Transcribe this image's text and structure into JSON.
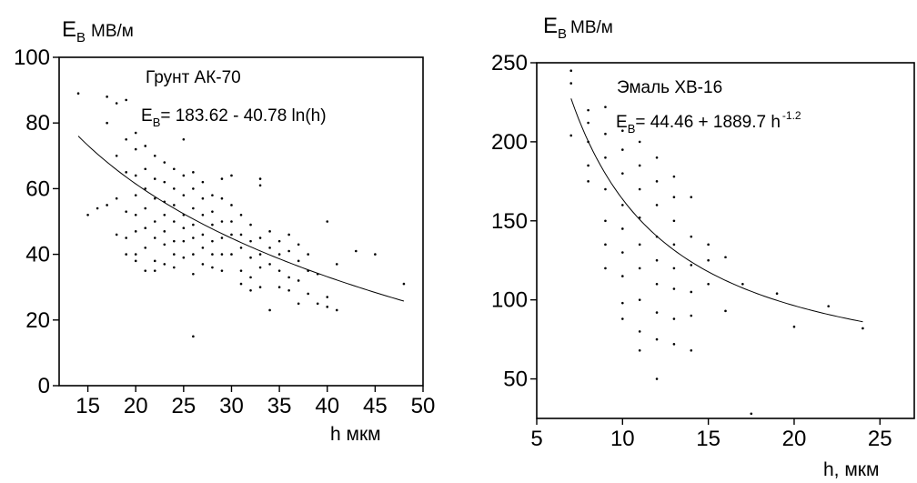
{
  "chart_data": [
    {
      "type": "scatter",
      "title": "",
      "ylabel_main": "E",
      "ylabel_sub": "B",
      "ylabel_unit": "МВ/м",
      "xlabel": "h  мкм",
      "xlim": [
        12,
        50
      ],
      "ylim": [
        0,
        100
      ],
      "yticks": [
        0,
        20,
        40,
        60,
        80,
        100
      ],
      "xticks": [
        15,
        20,
        25,
        30,
        35,
        40,
        45,
        50
      ],
      "grid": false,
      "annotation_title": "Грунт АК-70",
      "annotation_formula": {
        "lhs_main": "E",
        "lhs_sub": "B",
        "rhs": "= 183.62 -  40.78 ln(h)"
      },
      "fit": {
        "kind": "log",
        "a": 183.62,
        "b": -40.78,
        "x_range": [
          14,
          48
        ]
      },
      "series": [
        {
          "points": [
            [
              14,
              89
            ],
            [
              15,
              52
            ],
            [
              16,
              54
            ],
            [
              17,
              88
            ],
            [
              17,
              80
            ],
            [
              17,
              55
            ],
            [
              18,
              86
            ],
            [
              18,
              70
            ],
            [
              18,
              57
            ],
            [
              18,
              46
            ],
            [
              19,
              87
            ],
            [
              19,
              75
            ],
            [
              19,
              65
            ],
            [
              19,
              53
            ],
            [
              19,
              45
            ],
            [
              19,
              40
            ],
            [
              20,
              77
            ],
            [
              20,
              72
            ],
            [
              20,
              64
            ],
            [
              20,
              58
            ],
            [
              20,
              52
            ],
            [
              20,
              47
            ],
            [
              20,
              40
            ],
            [
              20,
              38
            ],
            [
              21,
              73
            ],
            [
              21,
              66
            ],
            [
              21,
              60
            ],
            [
              21,
              54
            ],
            [
              21,
              48
            ],
            [
              21,
              42
            ],
            [
              21,
              35
            ],
            [
              22,
              70
            ],
            [
              22,
              63
            ],
            [
              22,
              57
            ],
            [
              22,
              50
            ],
            [
              22,
              45
            ],
            [
              22,
              38
            ],
            [
              22,
              35
            ],
            [
              23,
              68
            ],
            [
              23,
              62
            ],
            [
              23,
              56
            ],
            [
              23,
              52
            ],
            [
              23,
              47
            ],
            [
              23,
              43
            ],
            [
              23,
              37
            ],
            [
              24,
              66
            ],
            [
              24,
              60
            ],
            [
              24,
              55
            ],
            [
              24,
              50
            ],
            [
              24,
              44
            ],
            [
              24,
              40
            ],
            [
              24,
              36
            ],
            [
              25,
              75
            ],
            [
              25,
              64
            ],
            [
              25,
              58
            ],
            [
              25,
              52
            ],
            [
              25,
              48
            ],
            [
              25,
              44
            ],
            [
              25,
              39
            ],
            [
              26,
              65
            ],
            [
              26,
              60
            ],
            [
              26,
              54
            ],
            [
              26,
              49
            ],
            [
              26,
              45
            ],
            [
              26,
              40
            ],
            [
              26,
              34
            ],
            [
              26,
              15
            ],
            [
              27,
              62
            ],
            [
              27,
              57
            ],
            [
              27,
              52
            ],
            [
              27,
              46
            ],
            [
              27,
              42
            ],
            [
              27,
              37
            ],
            [
              28,
              58
            ],
            [
              28,
              53
            ],
            [
              28,
              49
            ],
            [
              28,
              44
            ],
            [
              28,
              40
            ],
            [
              28,
              36
            ],
            [
              29,
              63
            ],
            [
              29,
              57
            ],
            [
              29,
              50
            ],
            [
              29,
              45
            ],
            [
              29,
              40
            ],
            [
              29,
              35
            ],
            [
              30,
              64
            ],
            [
              30,
              55
            ],
            [
              30,
              50
            ],
            [
              30,
              46
            ],
            [
              30,
              40
            ],
            [
              31,
              52
            ],
            [
              31,
              46
            ],
            [
              31,
              42
            ],
            [
              31,
              35
            ],
            [
              31,
              31
            ],
            [
              32,
              49
            ],
            [
              32,
              44
            ],
            [
              32,
              39
            ],
            [
              32,
              33
            ],
            [
              32,
              29
            ],
            [
              33,
              63
            ],
            [
              33,
              61
            ],
            [
              33,
              45
            ],
            [
              33,
              40
            ],
            [
              33,
              36
            ],
            [
              33,
              30
            ],
            [
              34,
              47
            ],
            [
              34,
              42
            ],
            [
              34,
              37
            ],
            [
              34,
              23
            ],
            [
              35,
              44
            ],
            [
              35,
              40
            ],
            [
              35,
              35
            ],
            [
              35,
              30
            ],
            [
              36,
              46
            ],
            [
              36,
              41
            ],
            [
              36,
              33
            ],
            [
              36,
              29
            ],
            [
              37,
              43
            ],
            [
              37,
              38
            ],
            [
              37,
              32
            ],
            [
              37,
              25
            ],
            [
              38,
              40
            ],
            [
              38,
              35
            ],
            [
              38,
              28
            ],
            [
              39,
              34
            ],
            [
              39,
              25
            ],
            [
              40,
              50
            ],
            [
              40,
              27
            ],
            [
              40,
              24
            ],
            [
              41,
              37
            ],
            [
              41,
              23
            ],
            [
              43,
              41
            ],
            [
              45,
              40
            ],
            [
              48,
              31
            ]
          ]
        }
      ]
    },
    {
      "type": "scatter",
      "title": "",
      "ylabel_main": "E",
      "ylabel_sub": "B",
      "ylabel_unit": "МВ/м",
      "xlabel": "h, мкм",
      "xlim": [
        5,
        27
      ],
      "ylim": [
        25,
        250
      ],
      "yticks": [
        50,
        100,
        150,
        200,
        250
      ],
      "xticks": [
        5,
        10,
        15,
        20,
        25
      ],
      "grid": false,
      "annotation_title": "Эмаль ХВ-16",
      "annotation_formula": {
        "lhs_main": "E",
        "lhs_sub": "B",
        "rhs": "=  44.46 +  1889.7 h",
        "exponent": "-1.2"
      },
      "fit": {
        "kind": "power",
        "a": 44.46,
        "b": 1889.7,
        "p": -1.2,
        "x_range": [
          7,
          24
        ]
      },
      "series": [
        {
          "points": [
            [
              7,
              245
            ],
            [
              7,
              237
            ],
            [
              7,
              204
            ],
            [
              8,
              220
            ],
            [
              8,
              212
            ],
            [
              8,
              200
            ],
            [
              8,
              185
            ],
            [
              8,
              175
            ],
            [
              9,
              222
            ],
            [
              9,
              205
            ],
            [
              9,
              190
            ],
            [
              9,
              170
            ],
            [
              9,
              150
            ],
            [
              9,
              135
            ],
            [
              9,
              120
            ],
            [
              10,
              207
            ],
            [
              10,
              195
            ],
            [
              10,
              180
            ],
            [
              10,
              160
            ],
            [
              10,
              145
            ],
            [
              10,
              130
            ],
            [
              10,
              115
            ],
            [
              10,
              98
            ],
            [
              10,
              88
            ],
            [
              11,
              200
            ],
            [
              11,
              185
            ],
            [
              11,
              170
            ],
            [
              11,
              152
            ],
            [
              11,
              135
            ],
            [
              11,
              120
            ],
            [
              11,
              100
            ],
            [
              11,
              80
            ],
            [
              11,
              68
            ],
            [
              12,
              190
            ],
            [
              12,
              175
            ],
            [
              12,
              160
            ],
            [
              12,
              140
            ],
            [
              12,
              125
            ],
            [
              12,
              110
            ],
            [
              12,
              92
            ],
            [
              12,
              75
            ],
            [
              12,
              50
            ],
            [
              13,
              178
            ],
            [
              13,
              165
            ],
            [
              13,
              150
            ],
            [
              13,
              135
            ],
            [
              13,
              120
            ],
            [
              13,
              107
            ],
            [
              13,
              88
            ],
            [
              13,
              72
            ],
            [
              14,
              165
            ],
            [
              14,
              140
            ],
            [
              14,
              122
            ],
            [
              14,
              105
            ],
            [
              14,
              90
            ],
            [
              14,
              68
            ],
            [
              15,
              135
            ],
            [
              15,
              125
            ],
            [
              15,
              110
            ],
            [
              16,
              127
            ],
            [
              16,
              93
            ],
            [
              17,
              110
            ],
            [
              17.5,
              28
            ],
            [
              19,
              104
            ],
            [
              20,
              83
            ],
            [
              22,
              96
            ],
            [
              24,
              82
            ]
          ]
        }
      ]
    }
  ]
}
